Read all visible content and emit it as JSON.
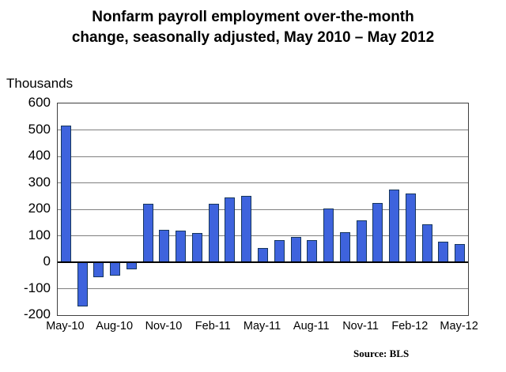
{
  "title": {
    "line1": "Nonfarm payroll employment over-the-month",
    "line2": "change, seasonally adjusted, May 2010 – May 2012"
  },
  "source_label": "Source: BLS",
  "chart_data": {
    "type": "bar",
    "title": "Nonfarm payroll employment over-the-month change, seasonally adjusted, May 2010 – May 2012",
    "unit_label": "Thousands",
    "xlabel": "",
    "ylabel": "Thousands",
    "x": [
      "May-10",
      "Jun-10",
      "Jul-10",
      "Aug-10",
      "Sep-10",
      "Oct-10",
      "Nov-10",
      "Dec-10",
      "Jan-11",
      "Feb-11",
      "Mar-11",
      "Apr-11",
      "May-11",
      "Jun-11",
      "Jul-11",
      "Aug-11",
      "Sep-11",
      "Oct-11",
      "Nov-11",
      "Dec-11",
      "Jan-12",
      "Feb-12",
      "Mar-12",
      "Apr-12",
      "May-12"
    ],
    "values": [
      516,
      -167,
      -58,
      -51,
      -27,
      220,
      121,
      120,
      110,
      220,
      246,
      251,
      54,
      84,
      96,
      85,
      202,
      112,
      157,
      223,
      275,
      259,
      143,
      77,
      69
    ],
    "x_tick_labels": [
      "May-10",
      "Aug-10",
      "Nov-10",
      "Feb-11",
      "May-11",
      "Aug-11",
      "Nov-11",
      "Feb-12",
      "May-12"
    ],
    "x_tick_every": 3,
    "y_ticks": [
      600,
      500,
      400,
      300,
      200,
      100,
      0,
      -100,
      -200
    ],
    "ylim": [
      -200,
      600
    ],
    "grid": "horizontal",
    "legend": "none",
    "bar_color": "#3e63dd",
    "bar_border_color": "#16365c",
    "gridline_color": "#7f7f7f",
    "source": "Source: BLS"
  }
}
